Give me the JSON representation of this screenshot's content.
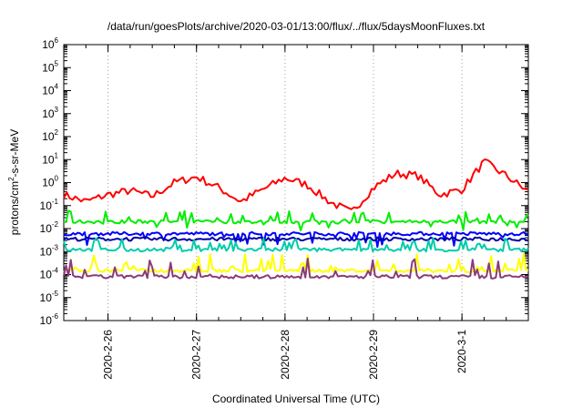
{
  "chart_data": {
    "type": "line",
    "title": "/data/run/goesPlots/archive/2020-03-01/13:00/flux/../flux/5daysMoonFluxes.txt",
    "xlabel": "Coordinated Universal Time (UTC)",
    "ylabel": "protons/cm2-s-sr-MeV",
    "y_scale": "log",
    "ylim": [
      1e-06,
      1000000.0
    ],
    "y_tick_labels": [
      "10-6",
      "10-5",
      "10-4",
      "10-3",
      "10-2",
      "10-1",
      "100",
      "101",
      "102",
      "103",
      "104",
      "105",
      "106"
    ],
    "xlim": [
      "2020-02-25 12:00",
      "2020-03-01 18:00"
    ],
    "x_ticks": [
      "2020-2-26",
      "2020-2-27",
      "2020-2-28",
      "2020-2-29",
      "2020-3-1"
    ],
    "grid": true,
    "series": [
      {
        "color": "#ff0000",
        "x": [
          "2020-02-25 12:00",
          "2020-02-25 18:00",
          "2020-02-26 00:00",
          "2020-02-26 06:00",
          "2020-02-26 12:00",
          "2020-02-26 18:00",
          "2020-02-27 00:00",
          "2020-02-27 06:00",
          "2020-02-27 12:00",
          "2020-02-27 18:00",
          "2020-02-28 00:00",
          "2020-02-28 06:00",
          "2020-02-28 12:00",
          "2020-02-28 18:00",
          "2020-02-29 00:00",
          "2020-02-29 06:00",
          "2020-02-29 12:00",
          "2020-02-29 18:00",
          "2020-03-01 00:00",
          "2020-03-01 06:00",
          "2020-03-01 12:00",
          "2020-03-01 18:00"
        ],
        "values": [
          0.3,
          0.15,
          0.3,
          0.45,
          0.25,
          1.0,
          1.8,
          0.6,
          0.15,
          0.5,
          1.6,
          0.8,
          0.15,
          0.05,
          0.6,
          2.5,
          2.0,
          0.3,
          0.5,
          8.0,
          2.0,
          0.4
        ]
      },
      {
        "color": "#00ee00",
        "x": [
          "2020-02-25 12:00",
          "2020-03-01 18:00"
        ],
        "level": 0.02,
        "spike_max": 0.06,
        "dip_min": 0.008
      },
      {
        "color": "#0000ff",
        "x": [
          "2020-02-25 12:00",
          "2020-03-01 18:00"
        ],
        "level": 0.006,
        "dip_min": 0.0015
      },
      {
        "color": "#0000aa",
        "x": [
          "2020-02-25 12:00",
          "2020-03-01 18:00"
        ],
        "level": 0.0035
      },
      {
        "color": "#00ccaa",
        "x": [
          "2020-02-25 12:00",
          "2020-03-01 18:00"
        ],
        "level": 0.0012,
        "spike_max": 0.004
      },
      {
        "color": "#ffff00",
        "x": [
          "2020-02-25 12:00",
          "2020-03-01 18:00"
        ],
        "level": 0.00015,
        "spike_max": 0.0008
      },
      {
        "color": "#8b3a7a",
        "x": [
          "2020-02-25 12:00",
          "2020-03-01 18:00"
        ],
        "level": 8e-05,
        "spike_max": 0.0005
      }
    ]
  }
}
